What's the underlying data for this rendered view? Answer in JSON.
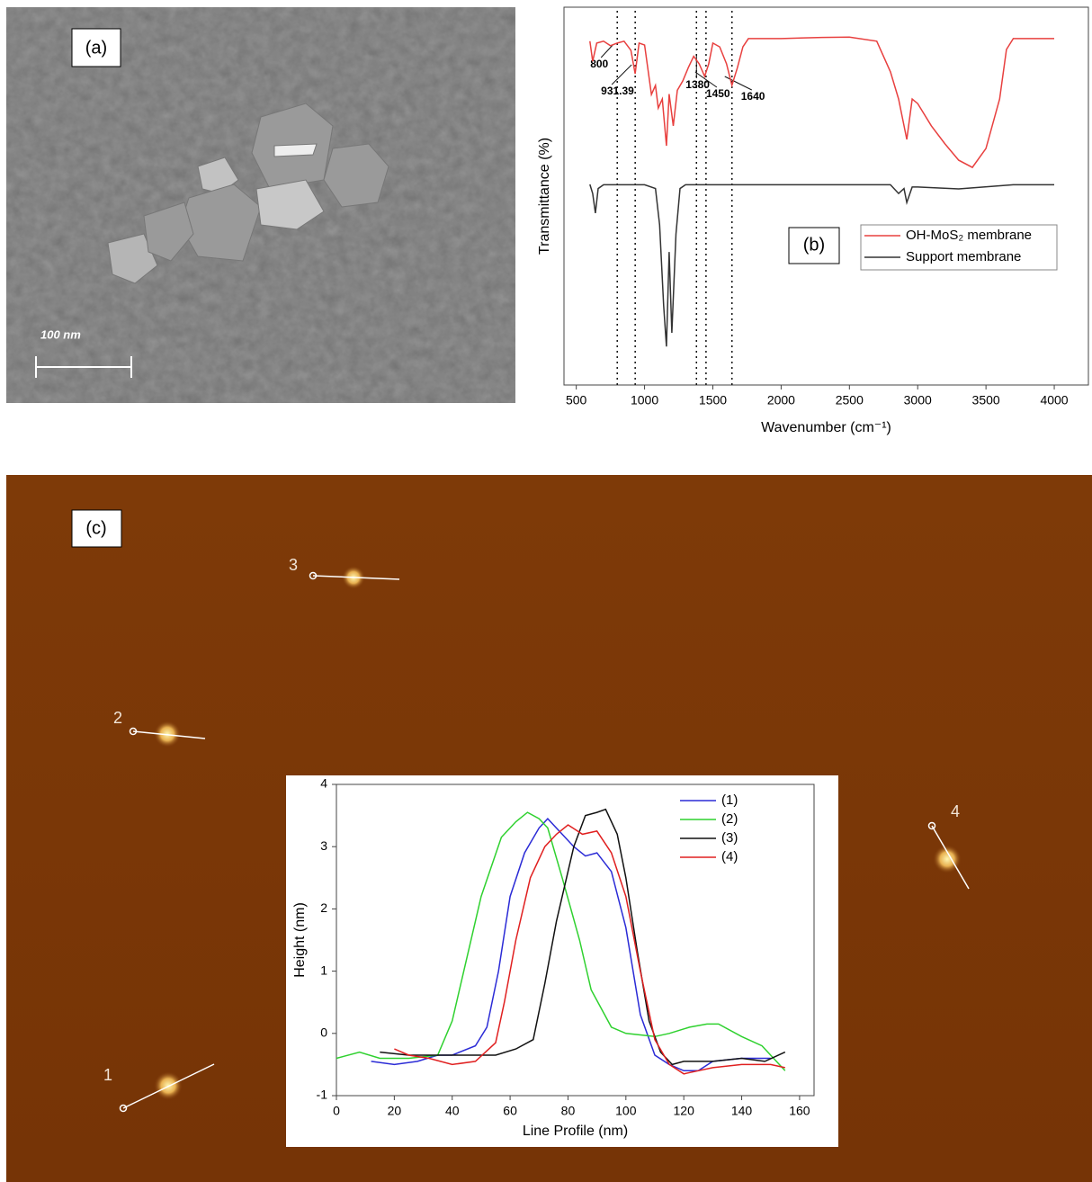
{
  "panels": {
    "a": {
      "label": "(a)",
      "scale_bar": "100 nm"
    },
    "b": {
      "label": "(b)"
    },
    "c": {
      "label": "(c)",
      "markers": [
        "1",
        "2",
        "3",
        "4"
      ]
    }
  },
  "chart_data": [
    {
      "type": "line",
      "xlabel": "Wavenumber (cm⁻¹)",
      "ylabel": "Transmittance (%)",
      "xlim": [
        410,
        4250
      ],
      "xticks": [
        500,
        1000,
        1500,
        2000,
        2500,
        3000,
        3500,
        4000
      ],
      "ylim": [
        0,
        100
      ],
      "vlines": [
        800,
        931.39,
        1380,
        1450,
        1640
      ],
      "series": [
        {
          "name": "OH-MoS₂ membrane",
          "color": "#e8403f",
          "x": [
            600,
            620,
            650,
            700,
            750,
            800,
            850,
            900,
            931,
            960,
            1000,
            1050,
            1080,
            1100,
            1130,
            1160,
            1180,
            1210,
            1240,
            1280,
            1320,
            1360,
            1400,
            1440,
            1470,
            1500,
            1550,
            1600,
            1640,
            1680,
            1720,
            1760,
            2000,
            2300,
            2500,
            2700,
            2800,
            2860,
            2920,
            2960,
            3000,
            3100,
            3200,
            3300,
            3400,
            3500,
            3600,
            3650,
            3700,
            4000
          ],
          "values": [
            91,
            85.7,
            90.5,
            91,
            89.8,
            90.5,
            91,
            88.6,
            82.4,
            90.5,
            90,
            76.9,
            79.3,
            73.3,
            75.7,
            63.3,
            77,
            68.6,
            78,
            80.5,
            84,
            87,
            85,
            81.7,
            85,
            90.5,
            89.5,
            85,
            79.3,
            84,
            89.5,
            91.7,
            91.7,
            92,
            92.1,
            91,
            82.9,
            75.7,
            65,
            75.7,
            74.5,
            68.6,
            63.8,
            59.5,
            57.6,
            62.6,
            75.7,
            88.8,
            91.7,
            91.7
          ]
        },
        {
          "name": "Support membrane",
          "color": "#333333",
          "x": [
            600,
            620,
            640,
            660,
            700,
            1000,
            1080,
            1110,
            1140,
            1160,
            1180,
            1200,
            1230,
            1260,
            1300,
            2000,
            2800,
            2860,
            2900,
            2920,
            2960,
            3000,
            3300,
            3700,
            4000
          ],
          "values": [
            53.1,
            50.7,
            45.5,
            52,
            53,
            53,
            52,
            42.4,
            21,
            10.2,
            35.2,
            13.8,
            40,
            52,
            53,
            53,
            53,
            50.7,
            52,
            48.3,
            52.4,
            52.4,
            51.9,
            53,
            53
          ]
        }
      ]
    },
    {
      "type": "line",
      "xlabel": "Line Profile (nm)",
      "ylabel": "Height (nm)",
      "xlim": [
        0,
        165
      ],
      "xticks": [
        0,
        20,
        40,
        60,
        80,
        100,
        120,
        140,
        160
      ],
      "ylim": [
        -1,
        4
      ],
      "yticks": [
        -1,
        0,
        1,
        2,
        3,
        4
      ],
      "series": [
        {
          "name": "(1)",
          "color": "#2b2bd6",
          "x": [
            12,
            20,
            28,
            35,
            40,
            48,
            52,
            56,
            60,
            65,
            70,
            73,
            78,
            82,
            86,
            90,
            95,
            100,
            105,
            110,
            115,
            120,
            125,
            130,
            140,
            150
          ],
          "values": [
            -0.45,
            -0.5,
            -0.45,
            -0.35,
            -0.35,
            -0.2,
            0.1,
            1.0,
            2.2,
            2.9,
            3.3,
            3.45,
            3.2,
            3.0,
            2.85,
            2.9,
            2.6,
            1.7,
            0.3,
            -0.35,
            -0.5,
            -0.6,
            -0.6,
            -0.45,
            -0.4,
            -0.4
          ]
        },
        {
          "name": "(2)",
          "color": "#2fd12f",
          "x": [
            0,
            8,
            15,
            25,
            35,
            40,
            45,
            50,
            57,
            62,
            66,
            70,
            73,
            78,
            84,
            88,
            95,
            100,
            110,
            115,
            122,
            128,
            132,
            140,
            147,
            155
          ],
          "values": [
            -0.4,
            -0.3,
            -0.4,
            -0.4,
            -0.35,
            0.2,
            1.2,
            2.2,
            3.15,
            3.4,
            3.55,
            3.45,
            3.3,
            2.5,
            1.5,
            0.7,
            0.1,
            0.0,
            -0.05,
            0.0,
            0.1,
            0.15,
            0.15,
            -0.05,
            -0.2,
            -0.6
          ]
        },
        {
          "name": "(3)",
          "color": "#111111",
          "x": [
            15,
            25,
            35,
            45,
            55,
            62,
            68,
            72,
            76,
            82,
            86,
            90,
            93,
            97,
            100,
            104,
            108,
            112,
            116,
            120,
            130,
            140,
            148,
            155
          ],
          "values": [
            -0.3,
            -0.35,
            -0.35,
            -0.35,
            -0.35,
            -0.25,
            -0.1,
            0.8,
            1.8,
            3.0,
            3.5,
            3.55,
            3.6,
            3.2,
            2.5,
            1.3,
            0.2,
            -0.3,
            -0.5,
            -0.45,
            -0.45,
            -0.4,
            -0.45,
            -0.3
          ]
        },
        {
          "name": "(4)",
          "color": "#e02020",
          "x": [
            20,
            25,
            32,
            40,
            48,
            55,
            58,
            62,
            67,
            72,
            76,
            80,
            85,
            90,
            95,
            100,
            105,
            110,
            115,
            120,
            125,
            130,
            140,
            150,
            155
          ],
          "values": [
            -0.25,
            -0.35,
            -0.4,
            -0.5,
            -0.45,
            -0.15,
            0.5,
            1.5,
            2.5,
            3.0,
            3.2,
            3.35,
            3.2,
            3.25,
            2.9,
            2.2,
            1.0,
            -0.1,
            -0.5,
            -0.65,
            -0.6,
            -0.55,
            -0.5,
            -0.5,
            -0.55
          ]
        }
      ]
    }
  ]
}
